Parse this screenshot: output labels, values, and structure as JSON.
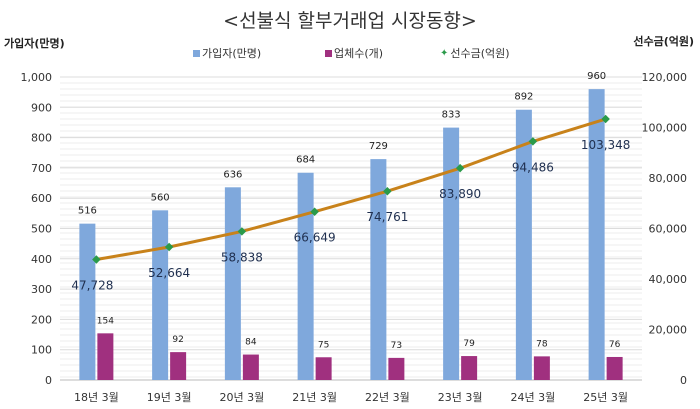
{
  "chart_data": {
    "type": "bar+line",
    "title": "<선불식 할부거래업 시장동향>",
    "ylabel_left": "가입자(만명)",
    "ylabel_right": "선수금(억원)",
    "categories": [
      "18년 3월",
      "19년 3월",
      "20년 3월",
      "21년 3월",
      "22년 3월",
      "23년 3월",
      "24년 3월",
      "25년 3월"
    ],
    "series": [
      {
        "name": "가입자(만명)",
        "type": "bar",
        "axis": "left",
        "color": "#7fa8dc",
        "values": [
          516,
          560,
          636,
          684,
          729,
          833,
          892,
          960
        ],
        "labels": [
          "516",
          "560",
          "636",
          "684",
          "729",
          "833",
          "892",
          "960"
        ]
      },
      {
        "name": "업체수(개)",
        "type": "bar",
        "axis": "left",
        "color": "#a0307f",
        "values": [
          154,
          92,
          84,
          75,
          73,
          79,
          78,
          76
        ],
        "labels": [
          "154",
          "92",
          "84",
          "75",
          "73",
          "79",
          "78",
          "76"
        ]
      },
      {
        "name": "선수금(억원)",
        "type": "line",
        "axis": "right",
        "color": "#c8821a",
        "marker_color": "#2a9a4a",
        "values": [
          47728,
          52664,
          58838,
          66649,
          74761,
          83890,
          94486,
          103348
        ],
        "labels": [
          "47,728",
          "52,664",
          "58,838",
          "66,649",
          "74,761",
          "83,890",
          "94,486",
          "103,348"
        ]
      }
    ],
    "ylim_left": [
      0,
      1000
    ],
    "yticks_left": [
      "0",
      "100",
      "200",
      "300",
      "400",
      "500",
      "600",
      "700",
      "800",
      "900",
      "1,000"
    ],
    "ylim_right": [
      0,
      120000
    ],
    "yticks_right": [
      "0",
      "20,000",
      "40,000",
      "60,000",
      "80,000",
      "100,000",
      "120,000"
    ],
    "grid": true,
    "legend_placement": "top"
  }
}
